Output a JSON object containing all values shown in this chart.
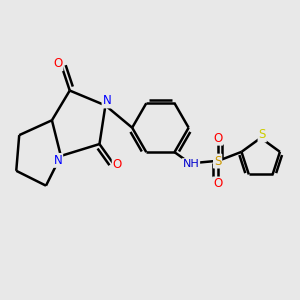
{
  "bg_color": "#e8e8e8",
  "bond_color": "#000000",
  "bond_width": 1.8,
  "atom_colors": {
    "N": "#0000ff",
    "O": "#ff0000",
    "S_sulfonyl": "#cc9900",
    "S_thiophene": "#cccc00",
    "C": "#000000",
    "H": "#888888",
    "NH": "#0000cc"
  },
  "font_size": 8.5
}
